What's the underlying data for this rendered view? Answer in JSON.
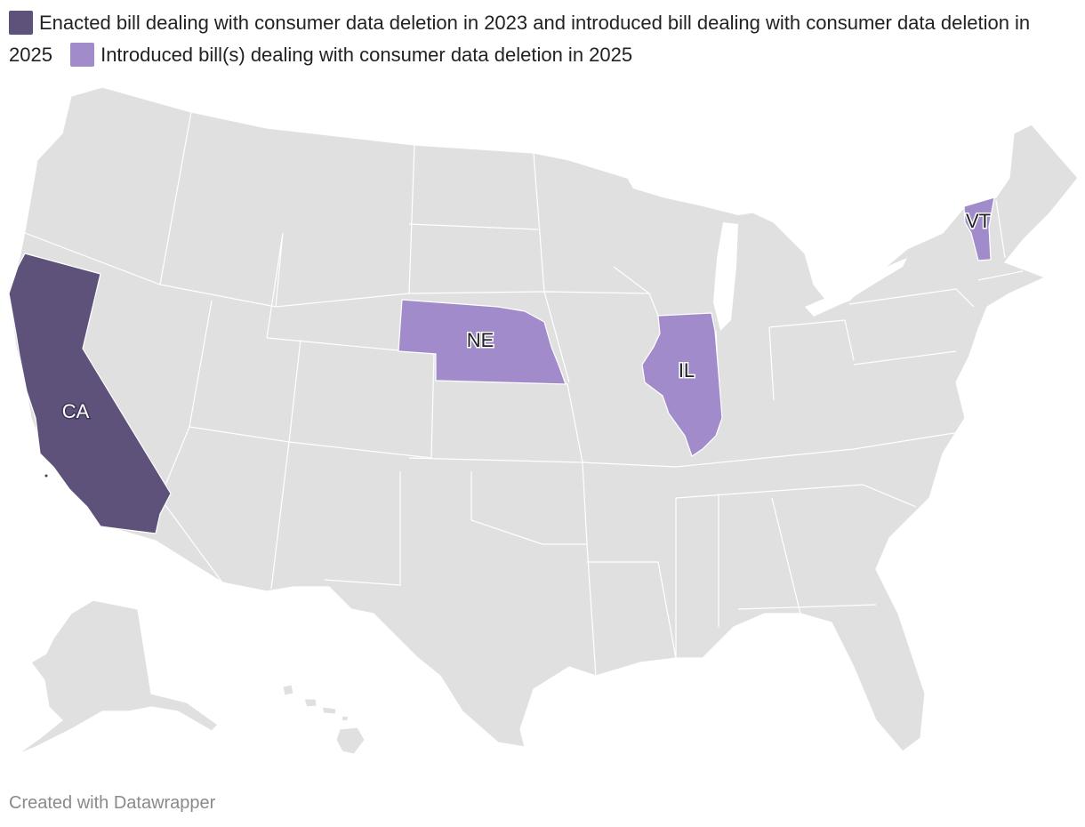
{
  "colors": {
    "enacted": "#5e527a",
    "introduced": "#a18bcb",
    "other": "#e0e0e0",
    "border": "#ffffff"
  },
  "legend": [
    {
      "label": "Enacted bill dealing with consumer data deletion in 2023 and introduced bill dealing with consumer data deletion in 2025",
      "color": "#5e527a"
    },
    {
      "label": "Introduced bill(s) dealing with consumer data deletion in 2025",
      "color": "#a18bcb"
    }
  ],
  "states": {
    "CA": {
      "label": "CA",
      "status": "enacted"
    },
    "NE": {
      "label": "NE",
      "status": "introduced"
    },
    "IL": {
      "label": "IL",
      "status": "introduced"
    },
    "VT": {
      "label": "VT",
      "status": "introduced"
    }
  },
  "credit": "Created with Datawrapper"
}
